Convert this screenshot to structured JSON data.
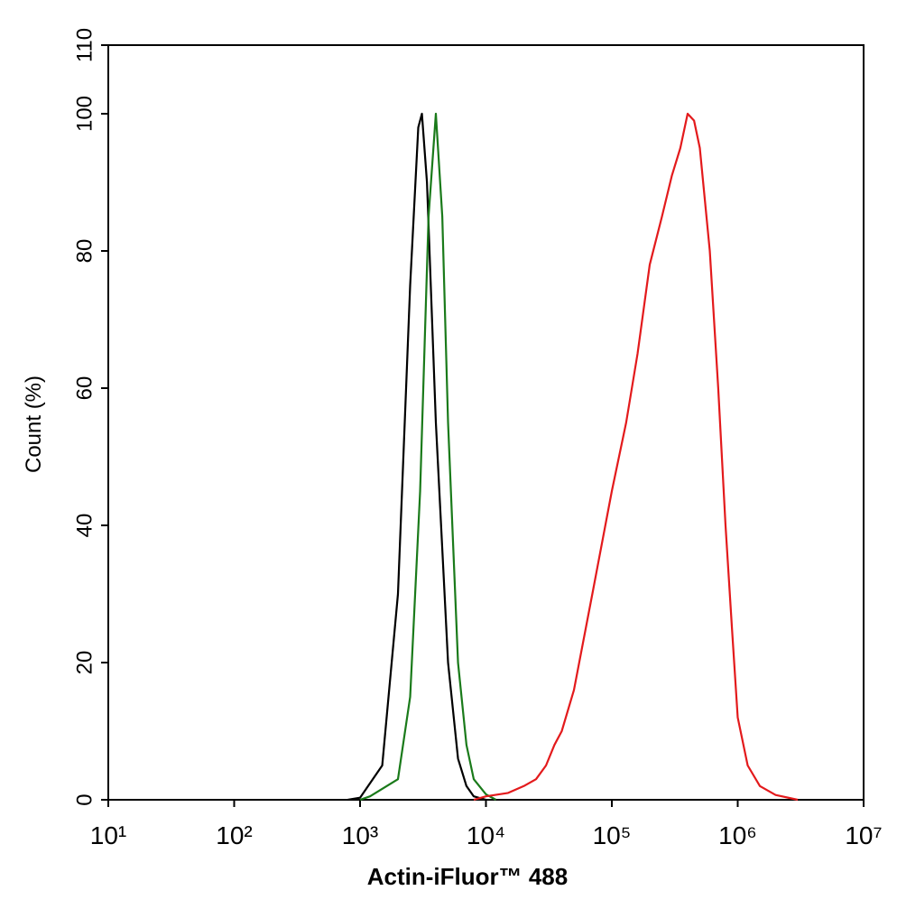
{
  "chart_data": {
    "type": "line",
    "xlabel": "Actin-iFluor™ 488",
    "ylabel": "Count  (%)",
    "xscale": "log",
    "xlim": [
      10,
      10000000
    ],
    "xticks": [
      {
        "value": 10,
        "label": "10¹"
      },
      {
        "value": 100,
        "label": "10²"
      },
      {
        "value": 1000,
        "label": "10³"
      },
      {
        "value": 10000,
        "label": "10⁴"
      },
      {
        "value": 100000,
        "label": "10⁵"
      },
      {
        "value": 1000000,
        "label": "10⁶"
      },
      {
        "value": 10000000,
        "label": "10⁷"
      }
    ],
    "ylim": [
      0,
      110
    ],
    "yticks": [
      0,
      20,
      40,
      60,
      80,
      100,
      110
    ],
    "series": [
      {
        "color": "#000000",
        "x": [
          800,
          1000,
          1500,
          2000,
          2500,
          2900,
          3100,
          3400,
          4000,
          5000,
          6000,
          7000,
          8000,
          10000
        ],
        "values": [
          0,
          0.3,
          5,
          30,
          75,
          98,
          100,
          90,
          55,
          20,
          6,
          2,
          0.5,
          0
        ]
      },
      {
        "color": "#1a7a1a",
        "x": [
          1000,
          1200,
          2000,
          2500,
          3000,
          3500,
          4000,
          4500,
          5000,
          6000,
          7000,
          8000,
          10000,
          12000
        ],
        "values": [
          0,
          0.5,
          3,
          15,
          45,
          85,
          100,
          85,
          55,
          20,
          8,
          3,
          0.8,
          0
        ]
      },
      {
        "color": "#e31a1c",
        "x": [
          8000,
          10000,
          15000,
          20000,
          25000,
          30000,
          35000,
          40000,
          50000,
          70000,
          100000,
          130000,
          160000,
          200000,
          250000,
          300000,
          350000,
          400000,
          450000,
          500000,
          600000,
          700000,
          800000,
          900000,
          1000000,
          1200000,
          1500000,
          2000000,
          3000000
        ],
        "values": [
          0,
          0.5,
          1,
          2,
          3,
          5,
          8,
          10,
          16,
          30,
          45,
          55,
          65,
          78,
          85,
          91,
          95,
          100,
          99,
          95,
          80,
          60,
          40,
          25,
          12,
          5,
          2,
          0.7,
          0
        ]
      }
    ]
  }
}
